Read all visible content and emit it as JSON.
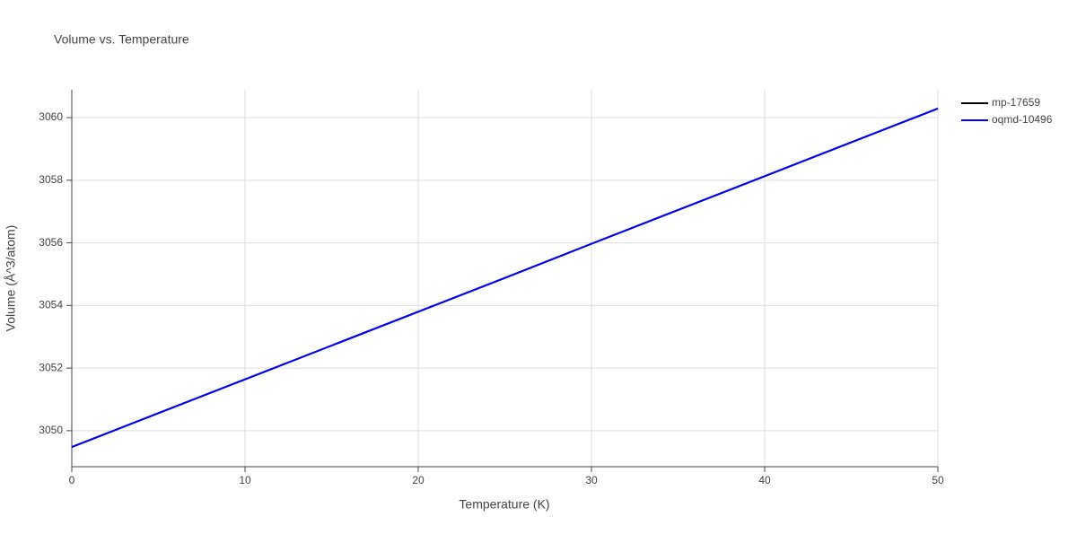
{
  "chart_data": {
    "type": "line",
    "title": "Volume vs. Temperature",
    "x_label": "Temperature (K)",
    "y_label": "Volume (Å^3/atom)",
    "x": [
      0,
      5,
      10,
      15,
      20,
      25,
      30,
      35,
      40,
      45,
      50
    ],
    "series": [
      {
        "name": "mp-17659",
        "color": "#000000",
        "values": [
          3049.48,
          3050.56,
          3051.64,
          3052.72,
          3053.8,
          3054.88,
          3055.97,
          3057.05,
          3058.13,
          3059.21,
          3060.29
        ]
      },
      {
        "name": "oqmd-10496",
        "color": "#0000ff",
        "values": [
          3049.48,
          3050.56,
          3051.64,
          3052.72,
          3053.8,
          3054.88,
          3055.97,
          3057.05,
          3058.13,
          3059.21,
          3060.29
        ]
      }
    ],
    "xlim": [
      0,
      50
    ],
    "xticks": [
      0,
      10,
      20,
      30,
      40,
      50
    ],
    "ylim": [
      3048.85,
      3060.89
    ],
    "yticks": [
      3050,
      3052,
      3054,
      3056,
      3058,
      3060
    ],
    "grid": true,
    "legend": "right"
  }
}
